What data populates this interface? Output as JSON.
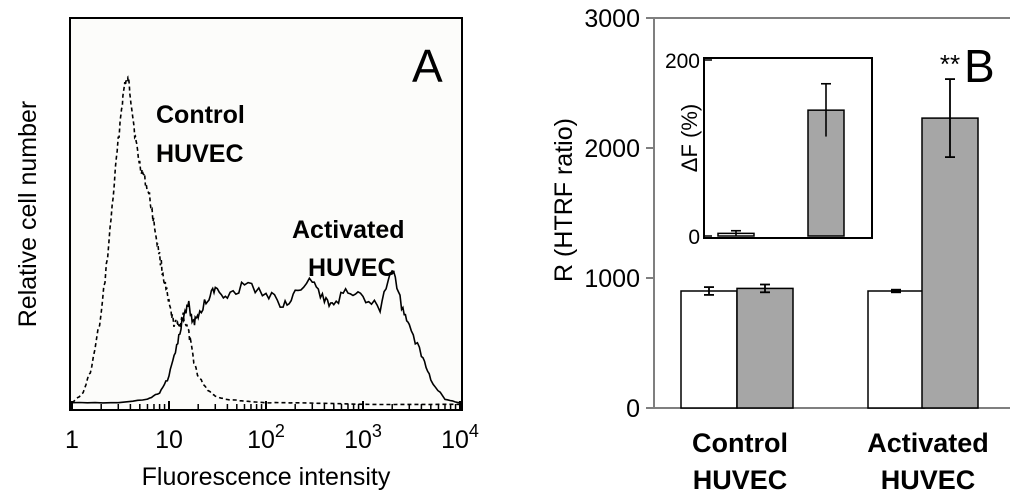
{
  "panel_a": {
    "letter": "A",
    "ylabel": "Relative cell number",
    "xlabel": "Fluorescence intensity",
    "ticks": [
      {
        "value": 1,
        "base": "1",
        "exp": ""
      },
      {
        "value": 10,
        "base": "10",
        "exp": ""
      },
      {
        "value": 100,
        "base": "10",
        "exp": "2"
      },
      {
        "value": 1000,
        "base": "10",
        "exp": "3"
      },
      {
        "value": 10000,
        "base": "10",
        "exp": "4"
      }
    ],
    "annotations": [
      {
        "line1": "Control",
        "line2": "HUVEC"
      },
      {
        "line1": "Activated",
        "line2": "HUVEC"
      }
    ]
  },
  "panel_b": {
    "letter": "B",
    "ylabel": "R (HTRF ratio)",
    "yticks": [
      "0",
      "1000",
      "2000",
      "3000"
    ],
    "groups": [
      {
        "line1": "Control",
        "line2": "HUVEC"
      },
      {
        "line1": "Activated",
        "line2": "HUVEC"
      }
    ],
    "significance": "**",
    "inset_ylabel": "ΔF (%)",
    "inset_yticks": [
      "0",
      "200"
    ]
  },
  "colors": {
    "bar_open": "#ffffff",
    "bar_filled": "#a6a6a6",
    "axis": "#000000",
    "frame_b": "#7f7f7f"
  },
  "chart_data": [
    {
      "type": "line",
      "panel": "A",
      "xscale": "log",
      "xlim": [
        1,
        10000
      ],
      "series": [
        {
          "style": "dashed",
          "x": [
            1,
            1.3,
            1.6,
            2,
            2.4,
            2.8,
            3.2,
            3.5,
            3.8,
            4.1,
            4.5,
            5,
            5.6,
            6.3,
            7.1,
            8,
            9,
            10,
            11,
            12.5,
            14,
            16,
            18,
            20,
            25,
            30,
            40,
            60,
            100,
            200,
            1000,
            10000
          ],
          "y": [
            0.01,
            0.04,
            0.12,
            0.28,
            0.5,
            0.72,
            0.9,
            0.99,
            1.0,
            0.93,
            0.82,
            0.74,
            0.7,
            0.64,
            0.55,
            0.46,
            0.38,
            0.31,
            0.26,
            0.24,
            0.28,
            0.22,
            0.14,
            0.09,
            0.05,
            0.03,
            0.02,
            0.015,
            0.01,
            0.01,
            0.005,
            0.005
          ]
        },
        {
          "style": "solid",
          "x": [
            1,
            3,
            6,
            8,
            10,
            12,
            14,
            16,
            18,
            20,
            25,
            30,
            40,
            60,
            100,
            150,
            200,
            300,
            400,
            500,
            700,
            1000,
            1500,
            2000,
            2500,
            3000,
            4000,
            5000,
            7000,
            10000
          ],
          "y": [
            0.01,
            0.01,
            0.02,
            0.04,
            0.09,
            0.19,
            0.27,
            0.31,
            0.25,
            0.28,
            0.33,
            0.36,
            0.34,
            0.37,
            0.35,
            0.31,
            0.34,
            0.39,
            0.32,
            0.31,
            0.36,
            0.33,
            0.3,
            0.42,
            0.31,
            0.24,
            0.16,
            0.08,
            0.02,
            0.01
          ]
        }
      ]
    },
    {
      "type": "bar",
      "panel": "B",
      "categories": [
        "Control HUVEC",
        "Activated HUVEC"
      ],
      "ylim": [
        0,
        3000
      ],
      "series": [
        {
          "color": "#ffffff",
          "values": [
            900,
            900
          ],
          "errors": [
            30,
            10
          ]
        },
        {
          "color": "#a6a6a6",
          "values": [
            920,
            2230
          ],
          "errors": [
            30,
            300
          ]
        }
      ]
    },
    {
      "type": "bar",
      "panel": "B-inset",
      "ylim": [
        0,
        200
      ],
      "series": [
        {
          "color": "#ffffff",
          "values": [
            3
          ],
          "errors": [
            3
          ]
        },
        {
          "color": "#a6a6a6",
          "values": [
            143
          ],
          "errors": [
            30
          ]
        }
      ]
    }
  ]
}
